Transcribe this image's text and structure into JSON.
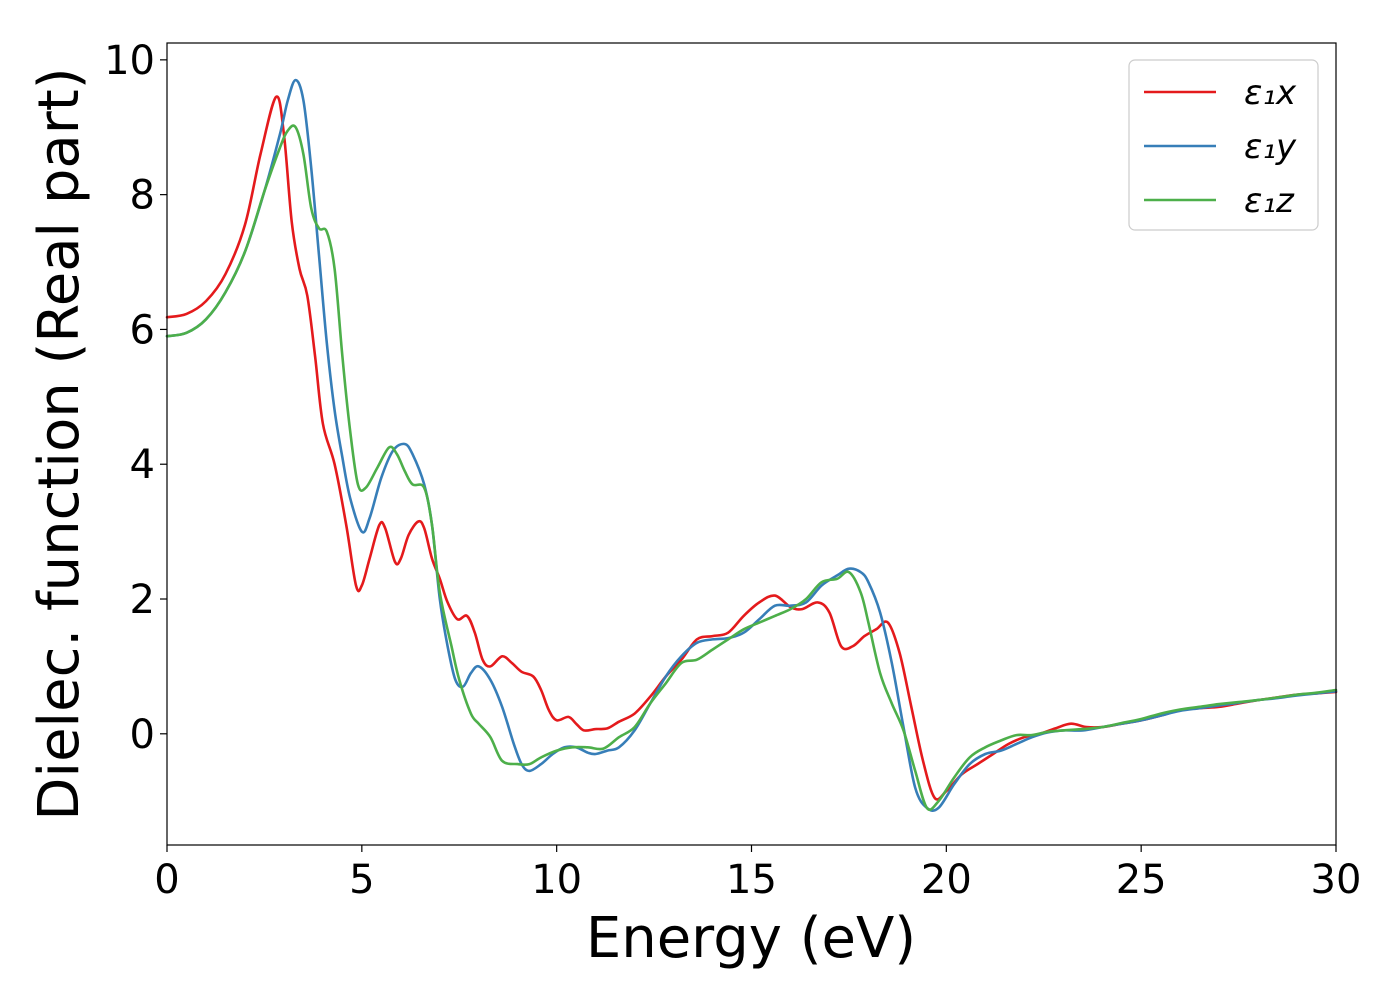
{
  "chart_data": {
    "type": "line",
    "xlabel": "Energy (eV)",
    "ylabel": "Dielec. function (Real part)",
    "xlim": [
      0,
      30
    ],
    "ylim": [
      -1.65,
      10.25
    ],
    "xticks": [
      0,
      5,
      10,
      15,
      20,
      25,
      30
    ],
    "yticks": [
      0,
      2,
      4,
      6,
      8,
      10
    ],
    "grid": false,
    "legend_position": "top-right",
    "series": [
      {
        "name": "ε₁x",
        "color": "#e41a1c",
        "points": [
          [
            0,
            6.18
          ],
          [
            0.5,
            6.23
          ],
          [
            1.0,
            6.42
          ],
          [
            1.5,
            6.82
          ],
          [
            2.0,
            7.55
          ],
          [
            2.4,
            8.6
          ],
          [
            2.8,
            9.45
          ],
          [
            3.0,
            8.9
          ],
          [
            3.2,
            7.6
          ],
          [
            3.4,
            6.9
          ],
          [
            3.6,
            6.5
          ],
          [
            3.8,
            5.6
          ],
          [
            4.0,
            4.6
          ],
          [
            4.3,
            4.0
          ],
          [
            4.6,
            3.1
          ],
          [
            4.85,
            2.2
          ],
          [
            5.0,
            2.2
          ],
          [
            5.2,
            2.6
          ],
          [
            5.45,
            3.1
          ],
          [
            5.6,
            3.05
          ],
          [
            5.85,
            2.55
          ],
          [
            6.0,
            2.6
          ],
          [
            6.2,
            2.95
          ],
          [
            6.45,
            3.15
          ],
          [
            6.6,
            3.05
          ],
          [
            6.8,
            2.6
          ],
          [
            7.0,
            2.3
          ],
          [
            7.2,
            1.95
          ],
          [
            7.45,
            1.7
          ],
          [
            7.7,
            1.75
          ],
          [
            7.9,
            1.5
          ],
          [
            8.1,
            1.1
          ],
          [
            8.3,
            1.0
          ],
          [
            8.6,
            1.15
          ],
          [
            8.85,
            1.05
          ],
          [
            9.1,
            0.92
          ],
          [
            9.4,
            0.85
          ],
          [
            9.6,
            0.65
          ],
          [
            9.8,
            0.35
          ],
          [
            10.0,
            0.2
          ],
          [
            10.3,
            0.25
          ],
          [
            10.5,
            0.15
          ],
          [
            10.7,
            0.05
          ],
          [
            11.0,
            0.07
          ],
          [
            11.3,
            0.08
          ],
          [
            11.6,
            0.18
          ],
          [
            12.0,
            0.3
          ],
          [
            12.4,
            0.55
          ],
          [
            12.8,
            0.85
          ],
          [
            13.2,
            1.1
          ],
          [
            13.6,
            1.4
          ],
          [
            14.0,
            1.45
          ],
          [
            14.4,
            1.5
          ],
          [
            14.8,
            1.75
          ],
          [
            15.2,
            1.95
          ],
          [
            15.6,
            2.05
          ],
          [
            16.0,
            1.88
          ],
          [
            16.3,
            1.85
          ],
          [
            16.7,
            1.95
          ],
          [
            17.0,
            1.8
          ],
          [
            17.3,
            1.3
          ],
          [
            17.6,
            1.3
          ],
          [
            17.9,
            1.45
          ],
          [
            18.2,
            1.55
          ],
          [
            18.5,
            1.65
          ],
          [
            18.8,
            1.2
          ],
          [
            19.1,
            0.4
          ],
          [
            19.4,
            -0.4
          ],
          [
            19.7,
            -0.95
          ],
          [
            20.0,
            -0.85
          ],
          [
            20.4,
            -0.6
          ],
          [
            20.8,
            -0.45
          ],
          [
            21.2,
            -0.3
          ],
          [
            21.6,
            -0.15
          ],
          [
            22.0,
            -0.05
          ],
          [
            22.4,
            0.0
          ],
          [
            22.8,
            0.08
          ],
          [
            23.2,
            0.15
          ],
          [
            23.6,
            0.1
          ],
          [
            24.0,
            0.1
          ],
          [
            24.5,
            0.15
          ],
          [
            25.0,
            0.2
          ],
          [
            25.5,
            0.27
          ],
          [
            26.0,
            0.35
          ],
          [
            26.5,
            0.38
          ],
          [
            27.0,
            0.4
          ],
          [
            27.5,
            0.45
          ],
          [
            28.0,
            0.5
          ],
          [
            28.5,
            0.54
          ],
          [
            29.0,
            0.58
          ],
          [
            29.5,
            0.6
          ],
          [
            30.0,
            0.62
          ]
        ]
      },
      {
        "name": "ε₁y",
        "color": "#377eb8",
        "points": [
          [
            0,
            5.9
          ],
          [
            0.5,
            5.95
          ],
          [
            1.0,
            6.15
          ],
          [
            1.5,
            6.55
          ],
          [
            2.0,
            7.15
          ],
          [
            2.5,
            8.05
          ],
          [
            2.9,
            8.9
          ],
          [
            3.1,
            9.4
          ],
          [
            3.3,
            9.7
          ],
          [
            3.5,
            9.4
          ],
          [
            3.7,
            8.4
          ],
          [
            3.9,
            7.1
          ],
          [
            4.1,
            5.8
          ],
          [
            4.3,
            4.8
          ],
          [
            4.5,
            4.1
          ],
          [
            4.7,
            3.5
          ],
          [
            5.0,
            3.0
          ],
          [
            5.2,
            3.2
          ],
          [
            5.5,
            3.8
          ],
          [
            5.8,
            4.2
          ],
          [
            6.1,
            4.3
          ],
          [
            6.3,
            4.15
          ],
          [
            6.6,
            3.7
          ],
          [
            6.8,
            3.1
          ],
          [
            7.0,
            2.0
          ],
          [
            7.2,
            1.3
          ],
          [
            7.4,
            0.8
          ],
          [
            7.6,
            0.7
          ],
          [
            7.8,
            0.9
          ],
          [
            8.0,
            1.0
          ],
          [
            8.3,
            0.8
          ],
          [
            8.6,
            0.4
          ],
          [
            8.9,
            -0.15
          ],
          [
            9.1,
            -0.45
          ],
          [
            9.3,
            -0.55
          ],
          [
            9.6,
            -0.45
          ],
          [
            9.9,
            -0.3
          ],
          [
            10.2,
            -0.2
          ],
          [
            10.5,
            -0.2
          ],
          [
            10.8,
            -0.28
          ],
          [
            11.0,
            -0.3
          ],
          [
            11.3,
            -0.25
          ],
          [
            11.6,
            -0.2
          ],
          [
            12.0,
            0.05
          ],
          [
            12.4,
            0.45
          ],
          [
            12.8,
            0.85
          ],
          [
            13.2,
            1.15
          ],
          [
            13.6,
            1.35
          ],
          [
            14.0,
            1.4
          ],
          [
            14.4,
            1.42
          ],
          [
            14.8,
            1.5
          ],
          [
            15.2,
            1.7
          ],
          [
            15.6,
            1.9
          ],
          [
            16.0,
            1.9
          ],
          [
            16.4,
            1.95
          ],
          [
            16.8,
            2.2
          ],
          [
            17.2,
            2.35
          ],
          [
            17.5,
            2.45
          ],
          [
            17.8,
            2.4
          ],
          [
            18.0,
            2.25
          ],
          [
            18.3,
            1.8
          ],
          [
            18.6,
            1.05
          ],
          [
            18.9,
            0.1
          ],
          [
            19.2,
            -0.8
          ],
          [
            19.5,
            -1.1
          ],
          [
            19.8,
            -1.1
          ],
          [
            20.2,
            -0.75
          ],
          [
            20.6,
            -0.45
          ],
          [
            21.0,
            -0.3
          ],
          [
            21.4,
            -0.25
          ],
          [
            21.8,
            -0.15
          ],
          [
            22.2,
            -0.05
          ],
          [
            22.6,
            0.02
          ],
          [
            23.0,
            0.05
          ],
          [
            23.5,
            0.05
          ],
          [
            24.0,
            0.1
          ],
          [
            24.5,
            0.15
          ],
          [
            25.0,
            0.2
          ],
          [
            25.5,
            0.27
          ],
          [
            26.0,
            0.34
          ],
          [
            26.5,
            0.38
          ],
          [
            27.0,
            0.42
          ],
          [
            27.5,
            0.46
          ],
          [
            28.0,
            0.5
          ],
          [
            28.5,
            0.53
          ],
          [
            29.0,
            0.57
          ],
          [
            29.5,
            0.6
          ],
          [
            30.0,
            0.63
          ]
        ]
      },
      {
        "name": "ε₁z",
        "color": "#4daf4a",
        "points": [
          [
            0,
            5.9
          ],
          [
            0.5,
            5.95
          ],
          [
            1.0,
            6.15
          ],
          [
            1.5,
            6.55
          ],
          [
            2.0,
            7.15
          ],
          [
            2.5,
            8.05
          ],
          [
            2.9,
            8.7
          ],
          [
            3.1,
            8.95
          ],
          [
            3.3,
            9.0
          ],
          [
            3.5,
            8.6
          ],
          [
            3.7,
            7.8
          ],
          [
            3.9,
            7.5
          ],
          [
            4.1,
            7.45
          ],
          [
            4.3,
            6.9
          ],
          [
            4.5,
            5.6
          ],
          [
            4.7,
            4.5
          ],
          [
            4.9,
            3.7
          ],
          [
            5.1,
            3.65
          ],
          [
            5.4,
            3.95
          ],
          [
            5.7,
            4.25
          ],
          [
            5.9,
            4.15
          ],
          [
            6.1,
            3.9
          ],
          [
            6.3,
            3.7
          ],
          [
            6.6,
            3.65
          ],
          [
            6.8,
            3.1
          ],
          [
            7.0,
            2.1
          ],
          [
            7.3,
            1.3
          ],
          [
            7.5,
            0.8
          ],
          [
            7.8,
            0.3
          ],
          [
            8.0,
            0.15
          ],
          [
            8.3,
            -0.05
          ],
          [
            8.6,
            -0.4
          ],
          [
            9.0,
            -0.45
          ],
          [
            9.3,
            -0.45
          ],
          [
            9.6,
            -0.35
          ],
          [
            10.0,
            -0.25
          ],
          [
            10.4,
            -0.2
          ],
          [
            10.8,
            -0.2
          ],
          [
            11.2,
            -0.22
          ],
          [
            11.6,
            -0.05
          ],
          [
            12.0,
            0.1
          ],
          [
            12.4,
            0.45
          ],
          [
            12.8,
            0.75
          ],
          [
            13.2,
            1.05
          ],
          [
            13.6,
            1.1
          ],
          [
            14.0,
            1.25
          ],
          [
            14.4,
            1.4
          ],
          [
            14.8,
            1.55
          ],
          [
            15.2,
            1.65
          ],
          [
            15.6,
            1.75
          ],
          [
            16.0,
            1.85
          ],
          [
            16.4,
            2.0
          ],
          [
            16.8,
            2.25
          ],
          [
            17.2,
            2.3
          ],
          [
            17.5,
            2.4
          ],
          [
            17.8,
            2.1
          ],
          [
            18.0,
            1.65
          ],
          [
            18.3,
            0.9
          ],
          [
            18.6,
            0.45
          ],
          [
            18.9,
            0.05
          ],
          [
            19.2,
            -0.55
          ],
          [
            19.5,
            -1.1
          ],
          [
            19.8,
            -1.0
          ],
          [
            20.2,
            -0.65
          ],
          [
            20.6,
            -0.35
          ],
          [
            21.0,
            -0.2
          ],
          [
            21.4,
            -0.1
          ],
          [
            21.8,
            -0.02
          ],
          [
            22.2,
            -0.02
          ],
          [
            22.6,
            0.03
          ],
          [
            23.0,
            0.05
          ],
          [
            23.5,
            0.07
          ],
          [
            24.0,
            0.1
          ],
          [
            24.5,
            0.16
          ],
          [
            25.0,
            0.22
          ],
          [
            25.5,
            0.3
          ],
          [
            26.0,
            0.36
          ],
          [
            26.5,
            0.4
          ],
          [
            27.0,
            0.44
          ],
          [
            27.5,
            0.47
          ],
          [
            28.0,
            0.5
          ],
          [
            28.5,
            0.54
          ],
          [
            29.0,
            0.58
          ],
          [
            29.5,
            0.61
          ],
          [
            30.0,
            0.65
          ]
        ]
      }
    ]
  }
}
